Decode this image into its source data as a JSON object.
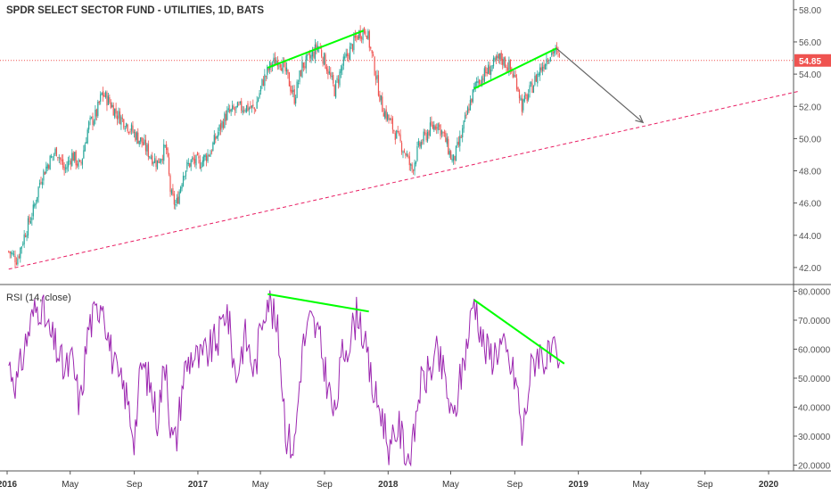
{
  "header": {
    "title": "SPDR SELECT SECTOR FUND - UTILITIES, 1D, BATS"
  },
  "price_panel": {
    "last_price_label": "54.85",
    "colors": {
      "up": "#26a69a",
      "down": "#ef5350",
      "last_line": "#ef5350",
      "trend": "#e91e63",
      "green_line": "#00ff00",
      "arrow": "#666666"
    }
  },
  "rsi_panel": {
    "label": "RSI (14, close)",
    "line_color": "#9c27b0"
  },
  "chart_data": [
    {
      "type": "candlestick",
      "title": "SPDR SELECT SECTOR FUND - UTILITIES, 1D, BATS",
      "x_ticks": [
        "2016",
        "May",
        "Sep",
        "2017",
        "May",
        "Sep",
        "2018",
        "May",
        "Sep",
        "2019",
        "May",
        "Sep",
        "2020"
      ],
      "y_ticks": [
        "42.00",
        "44.00",
        "46.00",
        "48.00",
        "50.00",
        "52.00",
        "54.00",
        "56.00",
        "58.00"
      ],
      "ylim": [
        41,
        58.6
      ],
      "last_price": 54.85,
      "close_path": [
        [
          "2016-01-04",
          43.0
        ],
        [
          "2016-01-20",
          42.5
        ],
        [
          "2016-02-05",
          44.2
        ],
        [
          "2016-02-20",
          45.5
        ],
        [
          "2016-03-05",
          47.5
        ],
        [
          "2016-03-20",
          48.5
        ],
        [
          "2016-04-05",
          49.3
        ],
        [
          "2016-04-20",
          48.0
        ],
        [
          "2016-05-05",
          49.0
        ],
        [
          "2016-05-20",
          48.2
        ],
        [
          "2016-06-05",
          50.8
        ],
        [
          "2016-06-20",
          51.5
        ],
        [
          "2016-07-01",
          52.8
        ],
        [
          "2016-07-15",
          52.3
        ],
        [
          "2016-07-30",
          51.5
        ],
        [
          "2016-08-15",
          51.0
        ],
        [
          "2016-09-01",
          50.3
        ],
        [
          "2016-09-15",
          49.8
        ],
        [
          "2016-10-01",
          49.0
        ],
        [
          "2016-10-15",
          48.5
        ],
        [
          "2016-11-01",
          49.5
        ],
        [
          "2016-11-10",
          46.5
        ],
        [
          "2016-11-20",
          45.8
        ],
        [
          "2016-12-05",
          48.0
        ],
        [
          "2016-12-20",
          48.6
        ],
        [
          "2017-01-05",
          48.5
        ],
        [
          "2017-01-25",
          49.2
        ],
        [
          "2017-02-10",
          50.5
        ],
        [
          "2017-02-25",
          51.5
        ],
        [
          "2017-03-15",
          51.8
        ],
        [
          "2017-04-01",
          52.0
        ],
        [
          "2017-04-20",
          51.8
        ],
        [
          "2017-05-05",
          53.5
        ],
        [
          "2017-05-20",
          54.5
        ],
        [
          "2017-06-05",
          55.0
        ],
        [
          "2017-06-20",
          54.0
        ],
        [
          "2017-07-05",
          52.5
        ],
        [
          "2017-07-20",
          54.5
        ],
        [
          "2017-08-05",
          55.0
        ],
        [
          "2017-08-20",
          55.8
        ],
        [
          "2017-09-05",
          54.5
        ],
        [
          "2017-09-20",
          53.0
        ],
        [
          "2017-10-05",
          54.5
        ],
        [
          "2017-10-20",
          55.5
        ],
        [
          "2017-11-05",
          56.5
        ],
        [
          "2017-11-20",
          56.8
        ],
        [
          "2017-12-05",
          54.5
        ],
        [
          "2017-12-20",
          52.0
        ],
        [
          "2018-01-05",
          51.0
        ],
        [
          "2018-01-20",
          50.0
        ],
        [
          "2018-02-05",
          49.0
        ],
        [
          "2018-02-15",
          48.0
        ],
        [
          "2018-03-01",
          49.5
        ],
        [
          "2018-03-20",
          50.5
        ],
        [
          "2018-04-05",
          51.0
        ],
        [
          "2018-04-20",
          50.0
        ],
        [
          "2018-05-05",
          48.5
        ],
        [
          "2018-05-20",
          50.0
        ],
        [
          "2018-06-05",
          52.0
        ],
        [
          "2018-06-20",
          53.5
        ],
        [
          "2018-07-05",
          54.0
        ],
        [
          "2018-07-20",
          54.5
        ],
        [
          "2018-08-05",
          55.0
        ],
        [
          "2018-08-20",
          54.5
        ],
        [
          "2018-09-05",
          53.5
        ],
        [
          "2018-09-15",
          52.0
        ],
        [
          "2018-10-01",
          53.0
        ],
        [
          "2018-10-15",
          54.0
        ],
        [
          "2018-11-01",
          55.0
        ],
        [
          "2018-11-15",
          55.5
        ],
        [
          "2018-11-28",
          54.85
        ]
      ],
      "drawings": [
        {
          "kind": "trendline",
          "style": "dashed",
          "color": "#e91e63",
          "points": [
            [
              "2016-01-04",
              41.9
            ],
            [
              "2020-03-01",
              52.95
            ]
          ]
        },
        {
          "kind": "trendline",
          "style": "solid",
          "color": "#00ff00",
          "points": [
            [
              "2017-05-15",
              54.4
            ],
            [
              "2017-11-15",
              56.7
            ]
          ]
        },
        {
          "kind": "trendline",
          "style": "solid",
          "color": "#00ff00",
          "points": [
            [
              "2018-06-15",
              53.1
            ],
            [
              "2018-11-20",
              55.6
            ]
          ]
        },
        {
          "kind": "arrow",
          "color": "#666666",
          "points": [
            [
              "2018-11-20",
              55.6
            ],
            [
              "2019-05-05",
              51.0
            ]
          ]
        }
      ]
    },
    {
      "type": "line",
      "title": "RSI (14, close)",
      "y_ticks": [
        "20.0000",
        "30.0000",
        "40.0000",
        "50.0000",
        "60.0000",
        "70.0000",
        "80.0000"
      ],
      "ylim": [
        18,
        82
      ],
      "series": [
        {
          "name": "RSI (14, close)",
          "points": [
            [
              "2016-01-04",
              55
            ],
            [
              "2016-01-20",
              48
            ],
            [
              "2016-02-05",
              62
            ],
            [
              "2016-02-20",
              72
            ],
            [
              "2016-03-05",
              76
            ],
            [
              "2016-03-20",
              66
            ],
            [
              "2016-04-05",
              60
            ],
            [
              "2016-04-20",
              52
            ],
            [
              "2016-05-05",
              56
            ],
            [
              "2016-05-20",
              40
            ],
            [
              "2016-06-05",
              68
            ],
            [
              "2016-06-20",
              72
            ],
            [
              "2016-07-01",
              79
            ],
            [
              "2016-07-15",
              62
            ],
            [
              "2016-07-30",
              50
            ],
            [
              "2016-08-15",
              45
            ],
            [
              "2016-09-01",
              30
            ],
            [
              "2016-09-15",
              55
            ],
            [
              "2016-10-01",
              48
            ],
            [
              "2016-10-15",
              36
            ],
            [
              "2016-11-01",
              58
            ],
            [
              "2016-11-10",
              30
            ],
            [
              "2016-11-20",
              28
            ],
            [
              "2016-12-05",
              52
            ],
            [
              "2016-12-20",
              58
            ],
            [
              "2017-01-05",
              56
            ],
            [
              "2017-01-25",
              60
            ],
            [
              "2017-02-10",
              64
            ],
            [
              "2017-02-25",
              75
            ],
            [
              "2017-03-15",
              50
            ],
            [
              "2017-04-01",
              65
            ],
            [
              "2017-04-20",
              52
            ],
            [
              "2017-05-05",
              72
            ],
            [
              "2017-05-15",
              79
            ],
            [
              "2017-06-05",
              64
            ],
            [
              "2017-06-20",
              30
            ],
            [
              "2017-07-05",
              26
            ],
            [
              "2017-07-20",
              60
            ],
            [
              "2017-08-05",
              70
            ],
            [
              "2017-08-20",
              65
            ],
            [
              "2017-09-05",
              50
            ],
            [
              "2017-09-20",
              36
            ],
            [
              "2017-10-05",
              58
            ],
            [
              "2017-10-20",
              64
            ],
            [
              "2017-11-05",
              74
            ],
            [
              "2017-11-20",
              58
            ],
            [
              "2017-12-05",
              44
            ],
            [
              "2017-12-20",
              38
            ],
            [
              "2018-01-05",
              24
            ],
            [
              "2018-01-20",
              34
            ],
            [
              "2018-02-05",
              24
            ],
            [
              "2018-02-15",
              22
            ],
            [
              "2018-03-01",
              46
            ],
            [
              "2018-03-20",
              52
            ],
            [
              "2018-04-05",
              58
            ],
            [
              "2018-04-20",
              50
            ],
            [
              "2018-05-05",
              34
            ],
            [
              "2018-05-20",
              50
            ],
            [
              "2018-06-05",
              66
            ],
            [
              "2018-06-15",
              78
            ],
            [
              "2018-07-05",
              60
            ],
            [
              "2018-07-20",
              58
            ],
            [
              "2018-08-05",
              62
            ],
            [
              "2018-08-20",
              56
            ],
            [
              "2018-09-05",
              48
            ],
            [
              "2018-09-15",
              29
            ],
            [
              "2018-10-01",
              52
            ],
            [
              "2018-10-15",
              60
            ],
            [
              "2018-11-01",
              56
            ],
            [
              "2018-11-15",
              58
            ],
            [
              "2018-11-28",
              50
            ]
          ]
        }
      ],
      "drawings": [
        {
          "kind": "trendline",
          "style": "solid",
          "color": "#00ff00",
          "points": [
            [
              "2017-05-15",
              79
            ],
            [
              "2017-11-25",
              73
            ]
          ]
        },
        {
          "kind": "trendline",
          "style": "solid",
          "color": "#00ff00",
          "points": [
            [
              "2018-06-15",
              77
            ],
            [
              "2018-12-05",
              55
            ]
          ]
        }
      ]
    }
  ]
}
